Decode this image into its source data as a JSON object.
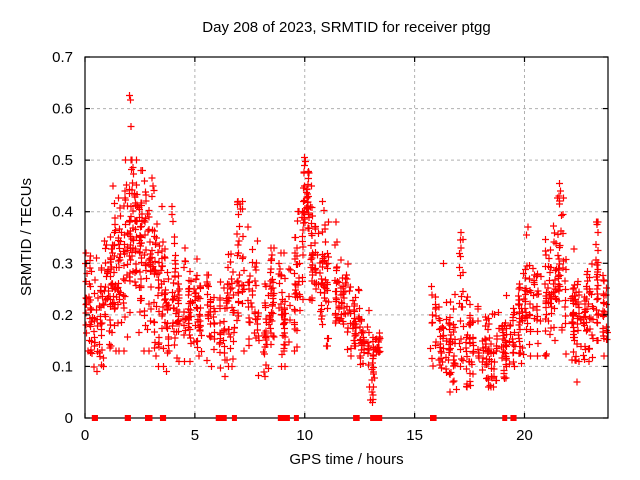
{
  "chart_data": {
    "type": "scatter",
    "title": "Day 208 of 2023, SRMTID for receiver ptgg",
    "xlabel": "GPS time / hours",
    "ylabel": "SRMTID / TECUs",
    "xlim": [
      0,
      23.8
    ],
    "ylim": [
      0,
      0.7
    ],
    "xticks": {
      "values": [
        0,
        5,
        10,
        15,
        20
      ],
      "labels": [
        "0",
        "5",
        "10",
        "15",
        "20"
      ]
    },
    "yticks": {
      "values": [
        0,
        0.1,
        0.2,
        0.3,
        0.4,
        0.5,
        0.6,
        0.7
      ],
      "labels": [
        "0",
        "0.1",
        "0.2",
        "0.3",
        "0.4",
        "0.5",
        "0.6",
        "0.7"
      ]
    },
    "grid": {
      "show": true,
      "color": "#b0b0b0",
      "dash": "3,3"
    },
    "axis_color": "#000000",
    "background": "#ffffff",
    "marker": {
      "shape": "plus",
      "color": "#ff0000",
      "size": 7
    },
    "zero_marker": {
      "shape": "filled-square",
      "color": "#ff0000",
      "size": 6
    },
    "data_gap_hours": [
      13.45,
      15.75
    ],
    "clusters_note": "time-binned scatter envelope: [t_start, t_end, n_points, mean, sd, min, max] in TECUs",
    "clusters": [
      [
        0.0,
        0.3,
        26,
        0.21,
        0.05,
        0.1,
        0.33
      ],
      [
        0.3,
        0.6,
        24,
        0.19,
        0.05,
        0.09,
        0.31
      ],
      [
        0.6,
        0.9,
        24,
        0.18,
        0.06,
        0.08,
        0.32
      ],
      [
        0.9,
        1.2,
        32,
        0.24,
        0.07,
        0.1,
        0.42
      ],
      [
        1.2,
        1.5,
        35,
        0.29,
        0.07,
        0.13,
        0.45
      ],
      [
        1.5,
        1.8,
        35,
        0.29,
        0.08,
        0.13,
        0.46
      ],
      [
        1.8,
        2.1,
        40,
        0.35,
        0.09,
        0.15,
        0.5
      ],
      [
        2.1,
        2.4,
        40,
        0.37,
        0.08,
        0.18,
        0.5
      ],
      [
        2.4,
        2.7,
        35,
        0.34,
        0.08,
        0.16,
        0.48
      ],
      [
        2.7,
        3.0,
        32,
        0.3,
        0.08,
        0.13,
        0.46
      ],
      [
        3.0,
        3.3,
        32,
        0.28,
        0.08,
        0.12,
        0.47
      ],
      [
        3.3,
        3.6,
        29,
        0.24,
        0.07,
        0.1,
        0.41
      ],
      [
        3.6,
        3.9,
        27,
        0.2,
        0.06,
        0.09,
        0.35
      ],
      [
        3.9,
        4.2,
        29,
        0.23,
        0.07,
        0.1,
        0.41
      ],
      [
        4.2,
        4.6,
        29,
        0.21,
        0.05,
        0.11,
        0.33
      ],
      [
        4.6,
        5.0,
        29,
        0.2,
        0.05,
        0.11,
        0.3
      ],
      [
        5.0,
        5.5,
        35,
        0.21,
        0.05,
        0.12,
        0.33
      ],
      [
        5.5,
        6.0,
        32,
        0.19,
        0.05,
        0.1,
        0.3
      ],
      [
        6.0,
        6.5,
        32,
        0.18,
        0.06,
        0.08,
        0.33
      ],
      [
        6.5,
        6.9,
        29,
        0.22,
        0.07,
        0.1,
        0.38
      ],
      [
        6.9,
        7.3,
        32,
        0.28,
        0.08,
        0.13,
        0.42
      ],
      [
        7.3,
        7.9,
        35,
        0.24,
        0.07,
        0.1,
        0.37
      ],
      [
        7.9,
        8.4,
        32,
        0.16,
        0.05,
        0.07,
        0.28
      ],
      [
        8.4,
        8.9,
        35,
        0.22,
        0.06,
        0.1,
        0.33
      ],
      [
        8.9,
        9.3,
        32,
        0.2,
        0.06,
        0.1,
        0.32
      ],
      [
        9.3,
        9.7,
        29,
        0.24,
        0.06,
        0.13,
        0.35
      ],
      [
        9.7,
        9.95,
        22,
        0.3,
        0.06,
        0.18,
        0.4
      ],
      [
        9.95,
        10.2,
        35,
        0.43,
        0.05,
        0.32,
        0.505
      ],
      [
        10.2,
        10.6,
        35,
        0.33,
        0.06,
        0.2,
        0.45
      ],
      [
        10.6,
        11.0,
        35,
        0.3,
        0.06,
        0.18,
        0.42
      ],
      [
        11.0,
        11.5,
        35,
        0.26,
        0.06,
        0.14,
        0.38
      ],
      [
        11.5,
        12.0,
        35,
        0.22,
        0.05,
        0.12,
        0.33
      ],
      [
        12.0,
        12.5,
        35,
        0.19,
        0.04,
        0.1,
        0.28
      ],
      [
        12.5,
        12.9,
        32,
        0.15,
        0.03,
        0.08,
        0.22
      ],
      [
        12.9,
        13.15,
        19,
        0.1,
        0.04,
        0.03,
        0.17
      ],
      [
        13.15,
        13.45,
        16,
        0.14,
        0.015,
        0.11,
        0.17
      ],
      [
        15.75,
        16.3,
        38,
        0.18,
        0.05,
        0.09,
        0.3
      ],
      [
        16.3,
        17.0,
        42,
        0.15,
        0.04,
        0.05,
        0.25
      ],
      [
        17.0,
        17.25,
        19,
        0.21,
        0.07,
        0.1,
        0.36
      ],
      [
        17.25,
        17.8,
        38,
        0.14,
        0.04,
        0.06,
        0.24
      ],
      [
        17.8,
        18.5,
        42,
        0.14,
        0.04,
        0.06,
        0.24
      ],
      [
        18.5,
        19.1,
        38,
        0.13,
        0.04,
        0.06,
        0.22
      ],
      [
        19.1,
        19.6,
        35,
        0.14,
        0.04,
        0.07,
        0.25
      ],
      [
        19.6,
        20.0,
        32,
        0.17,
        0.05,
        0.1,
        0.3
      ],
      [
        20.0,
        20.5,
        35,
        0.22,
        0.06,
        0.12,
        0.37
      ],
      [
        20.5,
        21.0,
        35,
        0.22,
        0.06,
        0.12,
        0.35
      ],
      [
        21.0,
        21.5,
        38,
        0.26,
        0.06,
        0.15,
        0.38
      ],
      [
        21.5,
        21.8,
        29,
        0.3,
        0.07,
        0.17,
        0.46
      ],
      [
        21.8,
        22.3,
        35,
        0.21,
        0.05,
        0.1,
        0.33
      ],
      [
        22.3,
        22.8,
        40,
        0.17,
        0.04,
        0.07,
        0.28
      ],
      [
        22.8,
        23.2,
        32,
        0.2,
        0.05,
        0.11,
        0.31
      ],
      [
        23.2,
        23.5,
        26,
        0.26,
        0.06,
        0.15,
        0.38
      ],
      [
        23.5,
        23.85,
        26,
        0.2,
        0.05,
        0.12,
        0.3
      ]
    ],
    "outliers": [
      [
        2.02,
        0.625
      ],
      [
        2.06,
        0.617
      ],
      [
        2.1,
        0.565
      ],
      [
        10.0,
        0.505
      ],
      [
        10.03,
        0.497
      ],
      [
        9.98,
        0.49
      ],
      [
        21.6,
        0.455
      ],
      [
        21.63,
        0.44
      ],
      [
        21.57,
        0.43
      ],
      [
        21.6,
        0.415
      ],
      [
        7.05,
        0.415
      ],
      [
        7.08,
        0.405
      ],
      [
        6.98,
        0.395
      ],
      [
        3.95,
        0.41
      ],
      [
        3.5,
        0.41
      ],
      [
        3.05,
        0.465
      ],
      [
        3.1,
        0.45
      ],
      [
        17.1,
        0.36
      ],
      [
        17.08,
        0.345
      ],
      [
        17.12,
        0.33
      ],
      [
        23.3,
        0.375
      ],
      [
        23.35,
        0.36
      ],
      [
        20.15,
        0.37
      ],
      [
        20.1,
        0.355
      ],
      [
        13.0,
        0.035
      ],
      [
        13.05,
        0.05
      ],
      [
        12.95,
        0.06
      ],
      [
        16.6,
        0.05
      ],
      [
        16.9,
        0.055
      ],
      [
        22.4,
        0.07
      ],
      [
        0.05,
        0.32
      ],
      [
        0.1,
        0.28
      ]
    ],
    "zero_markers_note": "red squares on the x-axis at value 0: [center_hour, width_hours]",
    "zero_markers": [
      [
        0.45,
        0.28
      ],
      [
        1.95,
        0.28
      ],
      [
        2.9,
        0.34
      ],
      [
        3.55,
        0.28
      ],
      [
        6.2,
        0.5
      ],
      [
        6.8,
        0.22
      ],
      [
        9.05,
        0.55
      ],
      [
        9.62,
        0.22
      ],
      [
        12.35,
        0.3
      ],
      [
        13.25,
        0.55
      ],
      [
        15.85,
        0.3
      ],
      [
        19.1,
        0.1
      ],
      [
        19.5,
        0.28
      ]
    ]
  }
}
